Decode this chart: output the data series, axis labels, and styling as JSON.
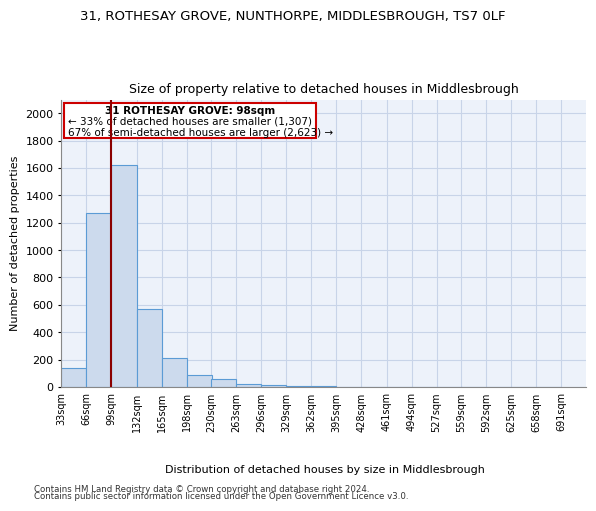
{
  "title1": "31, ROTHESAY GROVE, NUNTHORPE, MIDDLESBROUGH, TS7 0LF",
  "title2": "Size of property relative to detached houses in Middlesbrough",
  "xlabel": "Distribution of detached houses by size in Middlesbrough",
  "ylabel": "Number of detached properties",
  "bin_edges": [
    33,
    66,
    99,
    132,
    165,
    198,
    230,
    263,
    296,
    329,
    362,
    395,
    428,
    461,
    494,
    527,
    559,
    592,
    625,
    658,
    691
  ],
  "bar_heights": [
    140,
    1270,
    1620,
    570,
    215,
    90,
    55,
    25,
    15,
    5,
    5,
    2,
    1,
    1,
    1,
    1,
    1,
    1,
    1,
    1
  ],
  "bar_color": "#ccdaed",
  "bar_edge_color": "#5b9bd5",
  "grid_color": "#c8d4e8",
  "bg_color": "#edf2fa",
  "vline_x": 98,
  "vline_color": "#8b0000",
  "ann_line1": "31 ROTHESAY GROVE: 98sqm",
  "ann_line2": "← 33% of detached houses are smaller (1,307)",
  "ann_line3": "67% of semi-detached houses are larger (2,623) →",
  "annotation_box_color": "#cc0000",
  "footer1": "Contains HM Land Registry data © Crown copyright and database right 2024.",
  "footer2": "Contains public sector information licensed under the Open Government Licence v3.0.",
  "ylim": [
    0,
    2100
  ],
  "yticks": [
    0,
    200,
    400,
    600,
    800,
    1000,
    1200,
    1400,
    1600,
    1800,
    2000
  ]
}
